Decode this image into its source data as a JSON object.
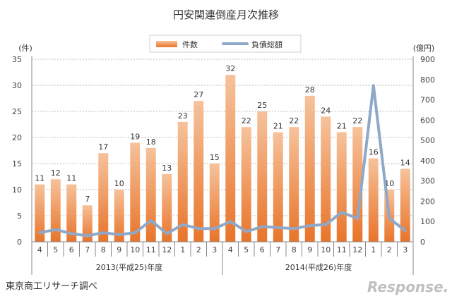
{
  "chart_data": {
    "type": "bar",
    "title": "円安関連倒産月次推移",
    "left_unit": "(件)",
    "right_unit": "(億円)",
    "legend": [
      "件数",
      "負債総額"
    ],
    "categories": [
      "4",
      "5",
      "6",
      "7",
      "8",
      "9",
      "10",
      "11",
      "12",
      "1",
      "2",
      "3",
      "4",
      "5",
      "6",
      "7",
      "8",
      "9",
      "10",
      "11",
      "12",
      "1",
      "2",
      "3"
    ],
    "series": [
      {
        "name": "件数",
        "axis": "left",
        "type": "bar",
        "values": [
          11,
          12,
          11,
          7,
          17,
          10,
          19,
          18,
          13,
          23,
          27,
          15,
          32,
          22,
          25,
          21,
          22,
          28,
          24,
          21,
          22,
          16,
          10,
          14
        ]
      },
      {
        "name": "負債総額",
        "axis": "right",
        "type": "line",
        "values": [
          45,
          60,
          40,
          30,
          45,
          35,
          45,
          105,
          40,
          85,
          65,
          65,
          100,
          50,
          75,
          70,
          65,
          80,
          85,
          145,
          115,
          770,
          115,
          55
        ]
      }
    ],
    "y_left_ticks": [
      0,
      5,
      10,
      15,
      20,
      25,
      30,
      35
    ],
    "y_right_ticks": [
      0,
      100,
      200,
      300,
      400,
      500,
      600,
      700,
      800,
      900
    ],
    "ylim_left": [
      0,
      35
    ],
    "ylim_right": [
      0,
      900
    ],
    "year_groups": [
      "2013(平成25)年度",
      "2014(平成26)年度"
    ],
    "colors": {
      "bar_top": "#f6c29b",
      "bar_bottom": "#e8742a",
      "line": "#8fa8c8",
      "grid": "#bdbdbd"
    }
  },
  "source": "東京商工リサーチ調べ",
  "brand": "Response."
}
